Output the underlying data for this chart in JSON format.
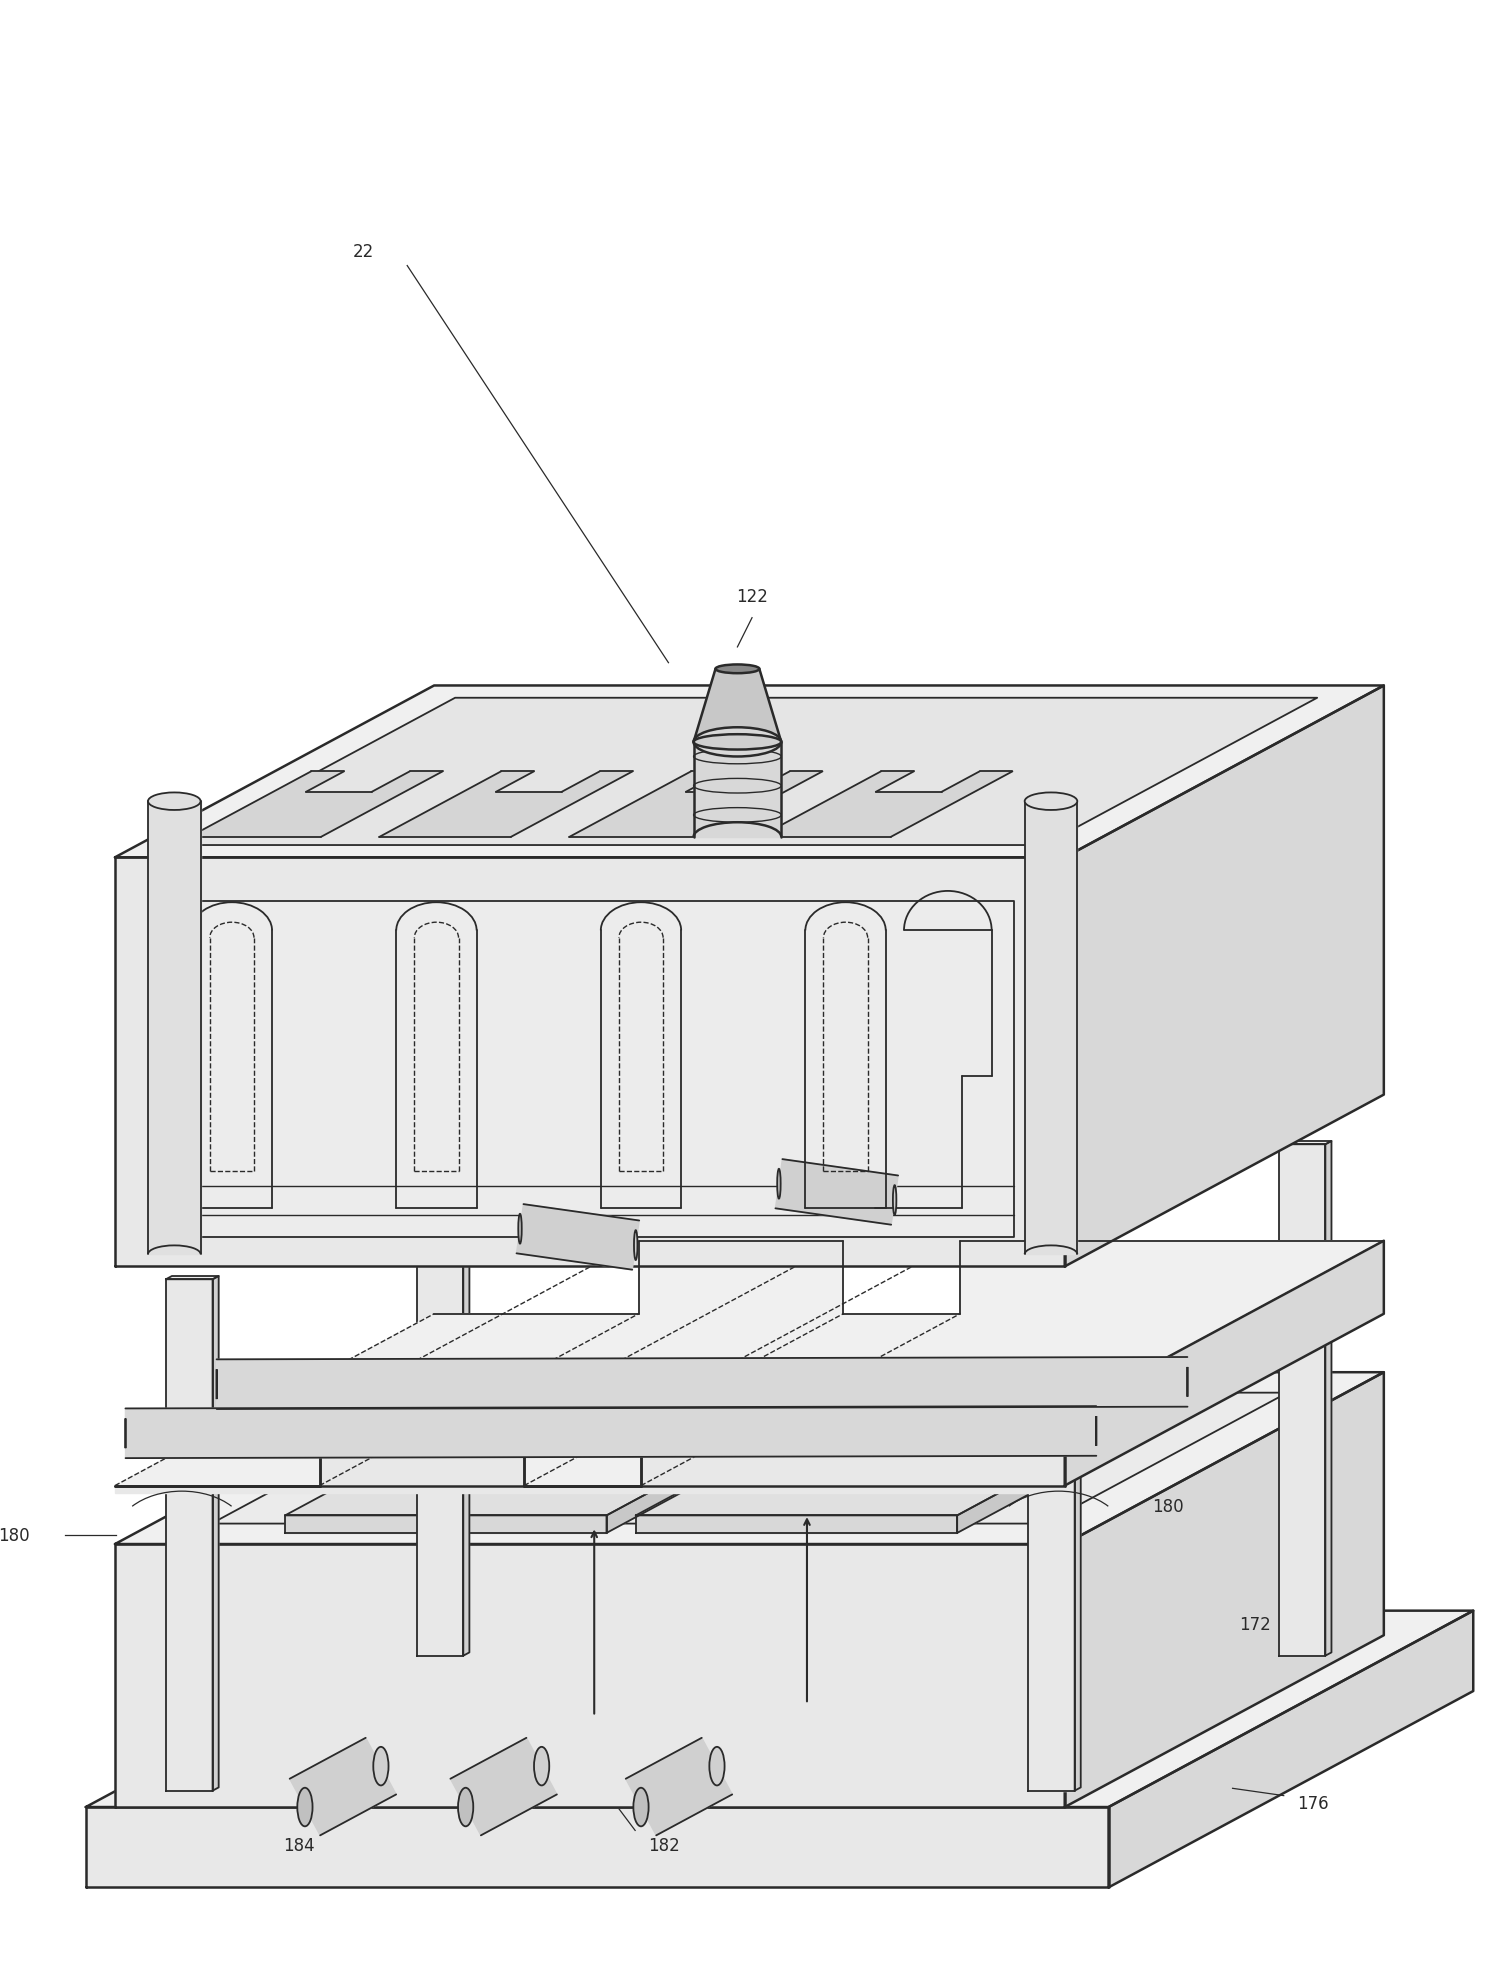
{
  "bg_color": "#ffffff",
  "lc": "#2a2a2a",
  "lw": 1.8,
  "lw_thin": 1.0,
  "lw_med": 1.3,
  "fill_top": "#f0f0f0",
  "fill_front": "#e8e8e8",
  "fill_right": "#d8d8d8",
  "fill_inner": "#f8f8f8",
  "figsize": [
    15.1,
    19.65
  ],
  "dpi": 100
}
